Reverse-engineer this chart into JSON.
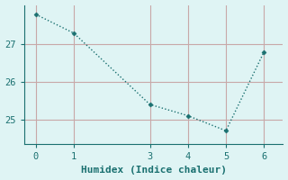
{
  "x": [
    0,
    1,
    3,
    4,
    5,
    6
  ],
  "y": [
    27.8,
    27.3,
    25.4,
    25.1,
    24.7,
    26.8
  ],
  "line_color": "#1a7070",
  "marker_color": "#1a7070",
  "bg_color": "#dff4f4",
  "grid_color": "#c8a8a8",
  "xlabel": "Humidex (Indice chaleur)",
  "xlabel_fontsize": 8,
  "xticks": [
    0,
    1,
    3,
    4,
    5,
    6
  ],
  "yticks": [
    25,
    26,
    27
  ],
  "ylim": [
    24.35,
    28.05
  ],
  "xlim": [
    -0.3,
    6.5
  ],
  "tick_fontsize": 7.5,
  "font_family": "monospace"
}
